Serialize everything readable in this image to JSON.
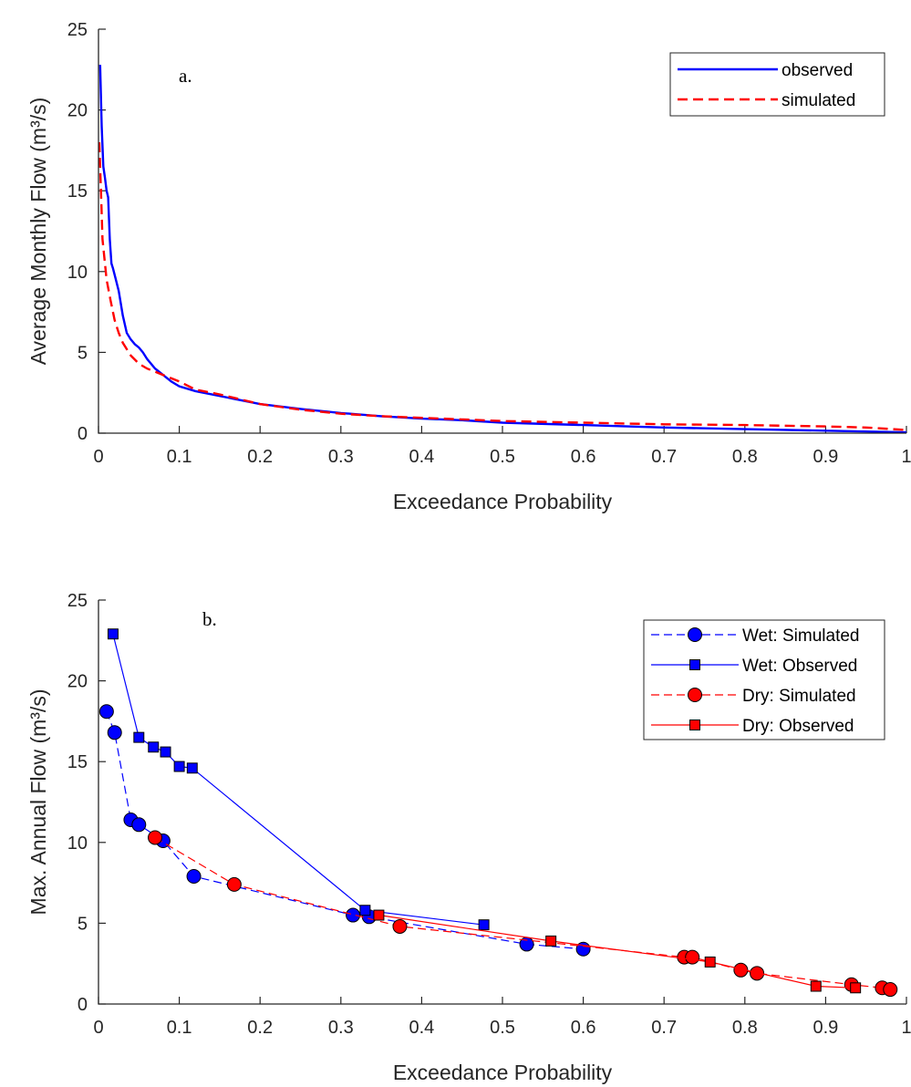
{
  "chart_data": [
    {
      "type": "line",
      "panel_label": "a.",
      "xlabel": "Exceedance Probability",
      "ylabel": "Average Monthly Flow (m³/s)",
      "xlim": [
        0,
        1
      ],
      "ylim": [
        0,
        25
      ],
      "xticks": [
        "0",
        "0.1",
        "0.2",
        "0.3",
        "0.4",
        "0.5",
        "0.6",
        "0.7",
        "0.8",
        "0.9",
        "1"
      ],
      "yticks": [
        "0",
        "5",
        "10",
        "15",
        "20",
        "25"
      ],
      "legend": {
        "position": "top-right",
        "entries": [
          "observed",
          "simulated"
        ]
      },
      "series": [
        {
          "name": "observed",
          "color": "#0000ff",
          "style": "solid",
          "x": [
            0.002,
            0.004,
            0.006,
            0.008,
            0.01,
            0.012,
            0.014,
            0.016,
            0.018,
            0.02,
            0.025,
            0.03,
            0.035,
            0.04,
            0.045,
            0.05,
            0.055,
            0.06,
            0.07,
            0.08,
            0.09,
            0.1,
            0.12,
            0.15,
            0.18,
            0.2,
            0.25,
            0.3,
            0.35,
            0.4,
            0.45,
            0.5,
            0.6,
            0.7,
            0.8,
            0.9,
            1.0
          ],
          "y": [
            22.8,
            19.0,
            16.5,
            15.8,
            15.0,
            14.6,
            12.0,
            10.5,
            10.2,
            9.8,
            8.8,
            7.3,
            6.2,
            5.8,
            5.5,
            5.3,
            5.0,
            4.6,
            4.0,
            3.6,
            3.2,
            2.9,
            2.6,
            2.3,
            2.0,
            1.8,
            1.5,
            1.25,
            1.05,
            0.9,
            0.8,
            0.65,
            0.5,
            0.35,
            0.25,
            0.15,
            0.05
          ]
        },
        {
          "name": "simulated",
          "color": "#ff0000",
          "style": "dashed",
          "x": [
            0.001,
            0.003,
            0.005,
            0.008,
            0.01,
            0.015,
            0.02,
            0.025,
            0.03,
            0.04,
            0.05,
            0.06,
            0.08,
            0.1,
            0.12,
            0.15,
            0.2,
            0.25,
            0.3,
            0.35,
            0.4,
            0.45,
            0.5,
            0.6,
            0.7,
            0.8,
            0.9,
            0.95,
            1.0
          ],
          "y": [
            18.0,
            15.0,
            12.0,
            10.5,
            9.5,
            8.2,
            7.0,
            6.2,
            5.6,
            4.8,
            4.3,
            4.0,
            3.6,
            3.2,
            2.7,
            2.4,
            1.8,
            1.45,
            1.2,
            1.05,
            0.95,
            0.85,
            0.75,
            0.65,
            0.55,
            0.5,
            0.42,
            0.35,
            0.2
          ]
        }
      ]
    },
    {
      "type": "line",
      "panel_label": "b.",
      "xlabel": "Exceedance Probability",
      "ylabel": "Max. Annual Flow (m³/s)",
      "xlim": [
        0,
        1
      ],
      "ylim": [
        0,
        25
      ],
      "xticks": [
        "0",
        "0.1",
        "0.2",
        "0.3",
        "0.4",
        "0.5",
        "0.6",
        "0.7",
        "0.8",
        "0.9",
        "1"
      ],
      "yticks": [
        "0",
        "5",
        "10",
        "15",
        "20",
        "25"
      ],
      "legend": {
        "position": "top-right",
        "entries": [
          "Wet: Simulated",
          "Wet: Observed",
          "Dry: Simulated",
          "Dry: Observed"
        ]
      },
      "series": [
        {
          "name": "Wet: Simulated",
          "color": "#0000ff",
          "style": "dashed",
          "marker": "circle",
          "x": [
            0.01,
            0.02,
            0.04,
            0.05,
            0.08,
            0.118,
            0.315,
            0.335,
            0.53,
            0.6
          ],
          "y": [
            18.1,
            16.8,
            11.4,
            11.1,
            10.1,
            7.9,
            5.5,
            5.4,
            3.7,
            3.4
          ]
        },
        {
          "name": "Wet: Observed",
          "color": "#0000ff",
          "style": "solid",
          "marker": "square",
          "x": [
            0.018,
            0.05,
            0.068,
            0.083,
            0.1,
            0.116,
            0.33,
            0.477
          ],
          "y": [
            22.9,
            16.5,
            15.9,
            15.6,
            14.7,
            14.6,
            5.8,
            4.9
          ]
        },
        {
          "name": "Dry: Simulated",
          "color": "#ff0000",
          "style": "dashed",
          "marker": "circle",
          "x": [
            0.07,
            0.168,
            0.373,
            0.725,
            0.735,
            0.795,
            0.815,
            0.932,
            0.97,
            0.98
          ],
          "y": [
            10.3,
            7.4,
            4.8,
            2.9,
            2.9,
            2.1,
            1.9,
            1.2,
            1.0,
            0.9
          ]
        },
        {
          "name": "Dry: Observed",
          "color": "#ff0000",
          "style": "solid",
          "marker": "square",
          "x": [
            0.347,
            0.56,
            0.757,
            0.888,
            0.937
          ],
          "y": [
            5.5,
            3.9,
            2.6,
            1.1,
            1.0
          ]
        }
      ]
    }
  ]
}
